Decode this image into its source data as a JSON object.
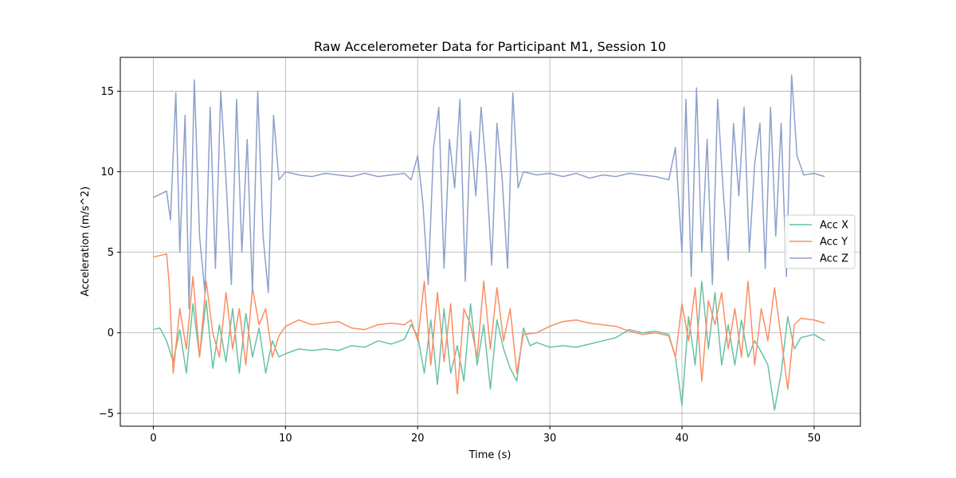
{
  "chart_data": {
    "type": "line",
    "title": "Raw Accelerometer Data for Participant M1, Session 10",
    "xlabel": "Time (s)",
    "ylabel": "Acceleration (m/s^2)",
    "xlim": [
      -2.5,
      53.5
    ],
    "ylim": [
      -5.8,
      17.1
    ],
    "xticks": [
      0,
      10,
      20,
      30,
      40,
      50
    ],
    "yticks": [
      -5,
      0,
      5,
      10,
      15
    ],
    "xtick_labels": [
      "0",
      "10",
      "20",
      "30",
      "40",
      "50"
    ],
    "ytick_labels": [
      "−5",
      "0",
      "5",
      "10",
      "15"
    ],
    "grid": true,
    "legend_position": "right",
    "series": [
      {
        "name": "Acc X",
        "color": "#66c2a5",
        "x": [
          0,
          0.5,
          1,
          1.5,
          2,
          2.5,
          3,
          3.5,
          4,
          4.5,
          5,
          5.5,
          6,
          6.5,
          7,
          7.5,
          8,
          8.5,
          9,
          9.5,
          10,
          11,
          12,
          13,
          14,
          15,
          16,
          17,
          18,
          19,
          19.5,
          20,
          20.5,
          21,
          21.5,
          22,
          22.5,
          23,
          23.5,
          24,
          24.5,
          25,
          25.5,
          26,
          26.5,
          27,
          27.5,
          28,
          28.5,
          29,
          30,
          31,
          32,
          33,
          34,
          35,
          36,
          37,
          38,
          39,
          39.5,
          40,
          40.5,
          41,
          41.5,
          42,
          42.5,
          43,
          43.5,
          44,
          44.5,
          45,
          45.5,
          46,
          46.5,
          47,
          47.5,
          48,
          48.5,
          49,
          50,
          50.8
        ],
        "y": [
          0.2,
          0.3,
          -0.5,
          -1.8,
          0.2,
          -2.5,
          1.8,
          -1.5,
          2.0,
          -2.2,
          0.5,
          -1.8,
          1.5,
          -2.5,
          1.2,
          -1.5,
          0.3,
          -2.5,
          -0.5,
          -1.5,
          -1.3,
          -1.0,
          -1.1,
          -1.0,
          -1.1,
          -0.8,
          -0.9,
          -0.5,
          -0.7,
          -0.4,
          0.5,
          -0.2,
          -2.5,
          0.8,
          -3.2,
          1.5,
          -2.5,
          -0.8,
          -3.0,
          1.8,
          -2.0,
          0.5,
          -3.5,
          0.8,
          -1.0,
          -2.2,
          -3.0,
          0.3,
          -0.8,
          -0.6,
          -0.9,
          -0.8,
          -0.9,
          -0.7,
          -0.5,
          -0.3,
          0.2,
          0.0,
          0.1,
          -0.1,
          -1.5,
          -4.5,
          1.0,
          -2.0,
          3.2,
          -1.0,
          2.5,
          -2.0,
          0.5,
          -2.0,
          0.8,
          -1.5,
          -0.5,
          -1.2,
          -2.0,
          -4.8,
          -2.5,
          1.0,
          -1.0,
          -0.3,
          -0.1,
          -0.5
        ]
      },
      {
        "name": "Acc Y",
        "color": "#fc8d62",
        "x": [
          0,
          0.5,
          1,
          1.2,
          1.5,
          2,
          2.5,
          3,
          3.5,
          4,
          4.5,
          5,
          5.5,
          6,
          6.5,
          7,
          7.5,
          8,
          8.5,
          9,
          9.5,
          10,
          11,
          12,
          13,
          14,
          15,
          16,
          17,
          18,
          19,
          19.5,
          20,
          20.5,
          21,
          21.5,
          22,
          22.5,
          23,
          23.5,
          24,
          24.5,
          25,
          25.5,
          26,
          26.5,
          27,
          27.5,
          28,
          29,
          30,
          31,
          32,
          33,
          34,
          35,
          36,
          37,
          38,
          39,
          39.5,
          40,
          40.5,
          41,
          41.5,
          42,
          42.5,
          43,
          43.5,
          44,
          44.5,
          45,
          45.5,
          46,
          46.5,
          47,
          47.5,
          48,
          48.5,
          49,
          50,
          50.8
        ],
        "y": [
          4.7,
          4.8,
          4.9,
          3.0,
          -2.5,
          1.5,
          -1.0,
          3.5,
          -1.5,
          3.2,
          0.0,
          -1.5,
          2.5,
          -1.0,
          1.5,
          -2.0,
          2.8,
          0.5,
          1.5,
          -1.5,
          -0.2,
          0.4,
          0.8,
          0.5,
          0.6,
          0.7,
          0.3,
          0.2,
          0.5,
          0.6,
          0.5,
          0.8,
          -0.5,
          3.2,
          -2.0,
          2.5,
          -1.8,
          1.8,
          -3.8,
          1.5,
          0.5,
          -1.5,
          3.2,
          -1.0,
          2.8,
          -0.5,
          1.5,
          -2.5,
          -0.1,
          0.0,
          0.4,
          0.7,
          0.8,
          0.6,
          0.5,
          0.4,
          0.1,
          -0.1,
          0.0,
          -0.2,
          -1.5,
          1.8,
          -0.5,
          2.8,
          -3.0,
          2.0,
          0.5,
          2.5,
          -1.0,
          1.5,
          -1.5,
          3.2,
          -2.0,
          1.5,
          -0.5,
          2.8,
          -0.3,
          -3.5,
          0.5,
          0.9,
          0.8,
          0.6
        ]
      },
      {
        "name": "Acc Z",
        "color": "#8da0cb",
        "x": [
          0,
          0.5,
          1,
          1.3,
          1.7,
          2,
          2.4,
          2.7,
          3.1,
          3.5,
          3.9,
          4.3,
          4.7,
          5.1,
          5.5,
          5.9,
          6.3,
          6.7,
          7.1,
          7.5,
          7.9,
          8.3,
          8.7,
          9.1,
          9.5,
          10,
          11,
          12,
          13,
          14,
          15,
          16,
          17,
          18,
          19,
          19.5,
          20,
          20.4,
          20.8,
          21.2,
          21.6,
          22,
          22.4,
          22.8,
          23.2,
          23.6,
          24,
          24.4,
          24.8,
          25.2,
          25.6,
          26,
          26.4,
          26.8,
          27.2,
          27.6,
          28,
          29,
          30,
          31,
          32,
          33,
          34,
          35,
          36,
          37,
          38,
          39,
          39.5,
          40,
          40.3,
          40.7,
          41.1,
          41.5,
          41.9,
          42.3,
          42.7,
          43.1,
          43.5,
          43.9,
          44.3,
          44.7,
          45.1,
          45.5,
          45.9,
          46.3,
          46.7,
          47.1,
          47.5,
          47.9,
          48.3,
          48.7,
          49.2,
          50,
          50.8
        ],
        "y": [
          8.4,
          8.6,
          8.8,
          7.0,
          14.9,
          5.0,
          13.5,
          1.5,
          15.7,
          6.0,
          2.5,
          14.0,
          4.0,
          15.0,
          9.5,
          3.0,
          14.5,
          5.0,
          12.0,
          2.5,
          15.0,
          6.0,
          2.5,
          13.5,
          9.5,
          10.0,
          9.8,
          9.7,
          9.9,
          9.8,
          9.7,
          9.9,
          9.7,
          9.8,
          9.9,
          9.5,
          11.0,
          8.0,
          3.0,
          11.5,
          14.0,
          4.0,
          12.0,
          9.0,
          14.5,
          3.2,
          12.5,
          8.5,
          14.0,
          10.0,
          4.2,
          13.0,
          9.5,
          4.0,
          14.9,
          9.0,
          10.0,
          9.8,
          9.9,
          9.7,
          9.9,
          9.6,
          9.8,
          9.7,
          9.9,
          9.8,
          9.7,
          9.5,
          11.5,
          5.0,
          14.5,
          3.5,
          15.2,
          5.0,
          12.0,
          3.0,
          14.5,
          9.0,
          4.5,
          13.0,
          8.5,
          14.0,
          5.0,
          10.5,
          13.0,
          4.0,
          14.0,
          6.0,
          13.0,
          3.5,
          16.0,
          11.0,
          9.8,
          9.9,
          9.7
        ]
      }
    ]
  }
}
